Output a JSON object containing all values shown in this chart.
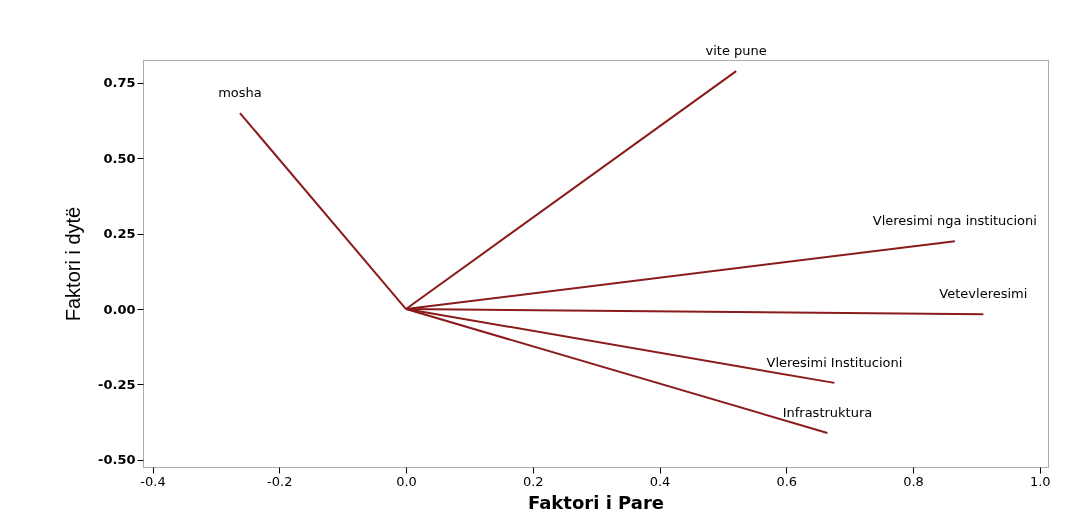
{
  "chart_data": {
    "type": "line",
    "xlabel": "Faktori i Pare",
    "ylabel": "Faktori i dytë",
    "xlim": [
      -0.415,
      1.013
    ],
    "ylim": [
      -0.524,
      0.826
    ],
    "xticks": [
      -0.4,
      -0.2,
      {
        "value": 0,
        "label": "0.0"
      },
      0.2,
      0.4,
      0.6,
      0.8,
      {
        "value": 1,
        "label": "1.0"
      }
    ],
    "yticks": [
      {
        "value": -0.5,
        "label": "-0.50"
      },
      -0.25,
      {
        "value": 0,
        "label": "0.00"
      },
      0.25,
      {
        "value": 0.5,
        "label": "0.50"
      },
      0.75
    ],
    "grid": false,
    "legend": false,
    "series": [
      {
        "name": "mosha",
        "color": "#8b1a1a",
        "x": [
          0,
          -0.262
        ],
        "values": [
          0,
          0.65
        ]
      },
      {
        "name": "vite pune",
        "color": "#8b1a1a",
        "x": [
          0,
          0.521
        ],
        "values": [
          0,
          0.789
        ]
      },
      {
        "name": "Vleresimi nga institucioni",
        "color": "#8b1a1a",
        "x": [
          0,
          0.866
        ],
        "values": [
          0,
          0.225
        ]
      },
      {
        "name": "Vetevleresimi",
        "color": "#8b1a1a",
        "x": [
          0,
          0.911
        ],
        "values": [
          0,
          -0.017
        ]
      },
      {
        "name": "Vleresimi Institucioni",
        "color": "#8b1a1a",
        "x": [
          0,
          0.676
        ],
        "values": [
          0,
          -0.245
        ]
      },
      {
        "name": "Infrastruktura",
        "color": "#8b1a1a",
        "x": [
          0,
          0.665
        ],
        "values": [
          0,
          -0.411
        ]
      }
    ]
  }
}
